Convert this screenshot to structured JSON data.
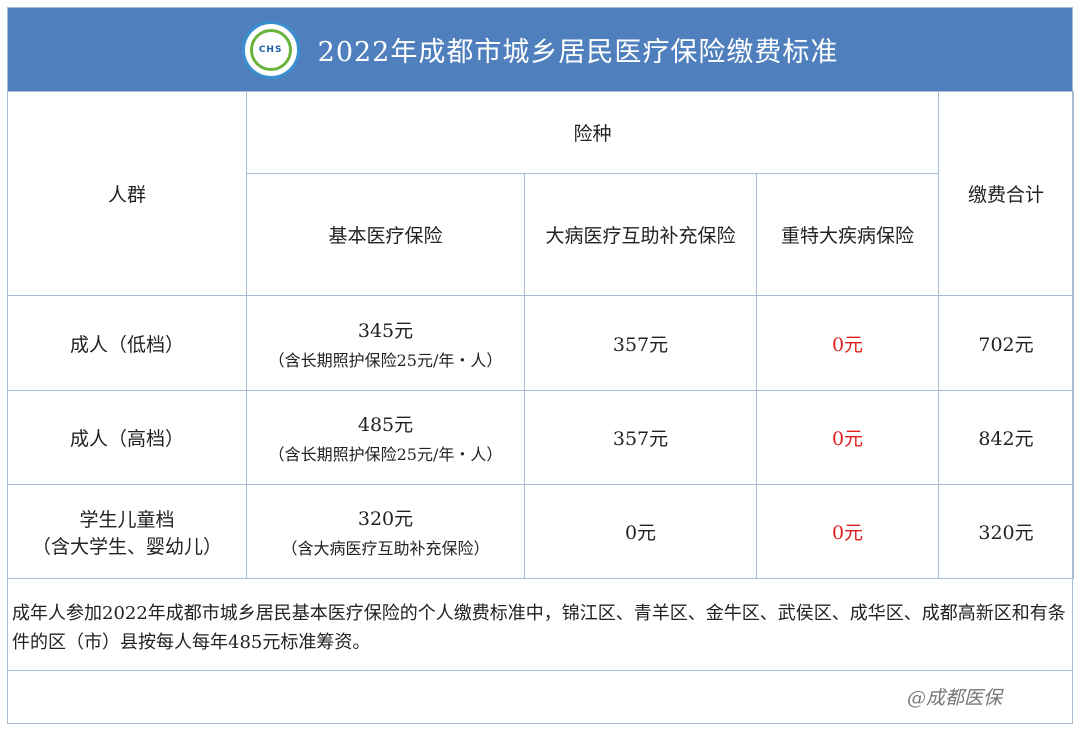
{
  "header": {
    "title": "2022年成都市城乡居民医疗保险缴费标准",
    "logo_text": "CHS",
    "brand_color": "#4f80bd"
  },
  "table": {
    "col_group": "人群",
    "insurance_types": "险种",
    "total": "缴费合计",
    "columns": [
      "基本医疗保险",
      "大病医疗互助补充保险",
      "重特大疾病保险"
    ],
    "rows": [
      {
        "group": "成人（低档）",
        "basic": "345元",
        "basic_note": "（含长期照护保险25元/年・人）",
        "serious": "357元",
        "major": "0元",
        "total": "702元"
      },
      {
        "group": "成人（高档）",
        "basic": "485元",
        "basic_note": "（含长期照护保险25元/年・人）",
        "serious": "357元",
        "major": "0元",
        "total": "842元"
      },
      {
        "group": "学生儿童档",
        "group2": "（含大学生、婴幼儿）",
        "basic": "320元",
        "basic_note": "（含大病医疗互助补充保险）",
        "serious": "0元",
        "major": "0元",
        "total": "320元"
      }
    ],
    "highlight_color": "#e02020"
  },
  "note": "成年人参加2022年成都市城乡居民基本医疗保险的个人缴费标准中，锦江区、青羊区、金牛区、武侯区、成华区、成都高新区和有条件的区（市）县按每人每年485元标准筹资。",
  "watermark": "@成都医保"
}
